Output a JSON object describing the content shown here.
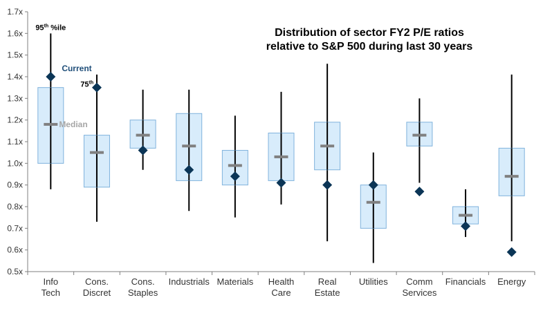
{
  "chart_data": {
    "type": "box",
    "title_lines": [
      "Distribution of sector FY2 P/E ratios",
      "relative to S&P 500 during last 30 years"
    ],
    "ylim": [
      0.5,
      1.7
    ],
    "yticks": [
      0.5,
      0.6,
      0.7,
      0.8,
      0.9,
      1.0,
      1.1,
      1.2,
      1.3,
      1.4,
      1.5,
      1.6,
      1.7
    ],
    "ytick_labels": [
      "0.5x",
      "0.6x",
      "0.7x",
      "0.8x",
      "0.9x",
      "1.0x",
      "1.1x",
      "1.2x",
      "1.3x",
      "1.4x",
      "1.5x",
      "1.6x",
      "1.7x"
    ],
    "grid": false,
    "categories": [
      [
        "Info",
        "Tech"
      ],
      [
        "Cons.",
        "Discret"
      ],
      [
        "Cons.",
        "Staples"
      ],
      [
        "Industrials"
      ],
      [
        "Materials"
      ],
      [
        "Health",
        "Care"
      ],
      [
        "Real",
        "Estate"
      ],
      [
        "Utilities"
      ],
      [
        "Comm",
        "Services"
      ],
      [
        "Financials"
      ],
      [
        "Energy"
      ]
    ],
    "p5": [
      0.88,
      0.73,
      0.97,
      0.78,
      0.75,
      0.81,
      0.64,
      0.54,
      0.91,
      0.66,
      0.64
    ],
    "p25": [
      1.0,
      0.89,
      1.07,
      0.92,
      0.9,
      0.92,
      0.97,
      0.7,
      1.08,
      0.72,
      0.85
    ],
    "median": [
      1.18,
      1.05,
      1.13,
      1.08,
      0.99,
      1.03,
      1.08,
      0.82,
      1.13,
      0.76,
      0.94
    ],
    "p75": [
      1.35,
      1.13,
      1.2,
      1.23,
      1.06,
      1.14,
      1.19,
      0.9,
      1.19,
      0.8,
      1.07
    ],
    "p95": [
      1.6,
      1.41,
      1.34,
      1.34,
      1.22,
      1.33,
      1.46,
      1.05,
      1.3,
      0.88,
      1.41
    ],
    "current": [
      1.4,
      1.35,
      1.06,
      0.97,
      0.94,
      0.91,
      0.9,
      0.9,
      0.87,
      0.71,
      0.59
    ],
    "annotations": {
      "p95_label": "95",
      "p95_sup": "th",
      "p95_suffix": " %ile",
      "p75_label": "75",
      "p75_sup": "th",
      "current_label": "Current",
      "median_label": "Median"
    },
    "colors": {
      "box_fill": "#d8ecfb",
      "box_stroke": "#7fb2dc",
      "whisker": "#000000",
      "median": "#808080",
      "current": "#0b3556",
      "axis": "#7f7f7f",
      "current_label": "#1f4e79",
      "median_label": "#a6a6a6"
    }
  }
}
